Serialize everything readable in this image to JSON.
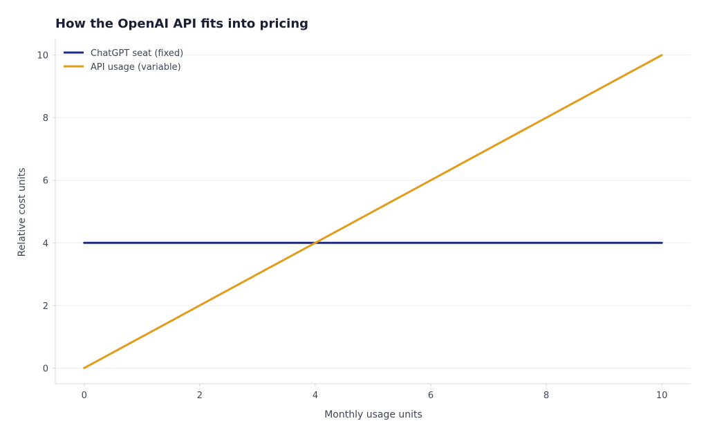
{
  "chart_data": {
    "type": "line",
    "title": "How the OpenAI API fits into pricing",
    "xlabel": "Monthly usage units",
    "ylabel": "Relative cost units",
    "xlim": [
      -0.5,
      10.5
    ],
    "ylim": [
      -0.5,
      10.5
    ],
    "xticks": [
      0,
      2,
      4,
      6,
      8,
      10
    ],
    "yticks": [
      0,
      2,
      4,
      6,
      8,
      10
    ],
    "grid": "horizontal",
    "legend_position": "top-left",
    "series": [
      {
        "name": "ChatGPT seat (fixed)",
        "color": "#1b2a80",
        "x": [
          0,
          10
        ],
        "y": [
          4,
          4
        ]
      },
      {
        "name": "API usage (variable)",
        "color": "#e39c1a",
        "x": [
          0,
          10
        ],
        "y": [
          0,
          10
        ]
      }
    ]
  }
}
